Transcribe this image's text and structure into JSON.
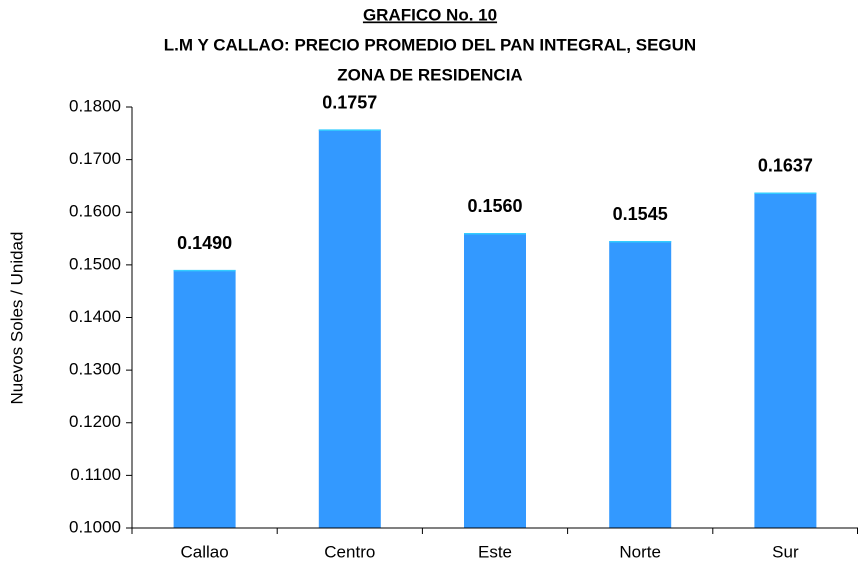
{
  "chart_data": {
    "type": "bar",
    "title": "GRAFICO No. 10",
    "subtitle": [
      "L.M Y CALLAO: PRECIO PROMEDIO DEL PAN INTEGRAL, SEGUN",
      "ZONA DE RESIDENCIA"
    ],
    "y_label": "Nuevos Soles / Unidad",
    "categories": [
      "Callao",
      "Centro",
      "Este",
      "Norte",
      "Sur"
    ],
    "values": [
      0.149,
      0.1757,
      0.156,
      0.1545,
      0.1637
    ],
    "value_labels": [
      "0.1490",
      "0.1757",
      "0.1560",
      "0.1545",
      "0.1637"
    ],
    "color": "#3399ff",
    "ylim": [
      0.1,
      0.18
    ],
    "yticks": [
      {
        "value": 0.1,
        "label": "0.1000"
      },
      {
        "value": 0.11,
        "label": "0.1100"
      },
      {
        "value": 0.12,
        "label": "0.1200"
      },
      {
        "value": 0.13,
        "label": "0.1300"
      },
      {
        "value": 0.14,
        "label": "0.1400"
      },
      {
        "value": 0.15,
        "label": "0.1500"
      },
      {
        "value": 0.16,
        "label": "0.1600"
      },
      {
        "value": 0.17,
        "label": "0.1700"
      },
      {
        "value": 0.18,
        "label": "0.1800"
      }
    ],
    "grid": false
  }
}
